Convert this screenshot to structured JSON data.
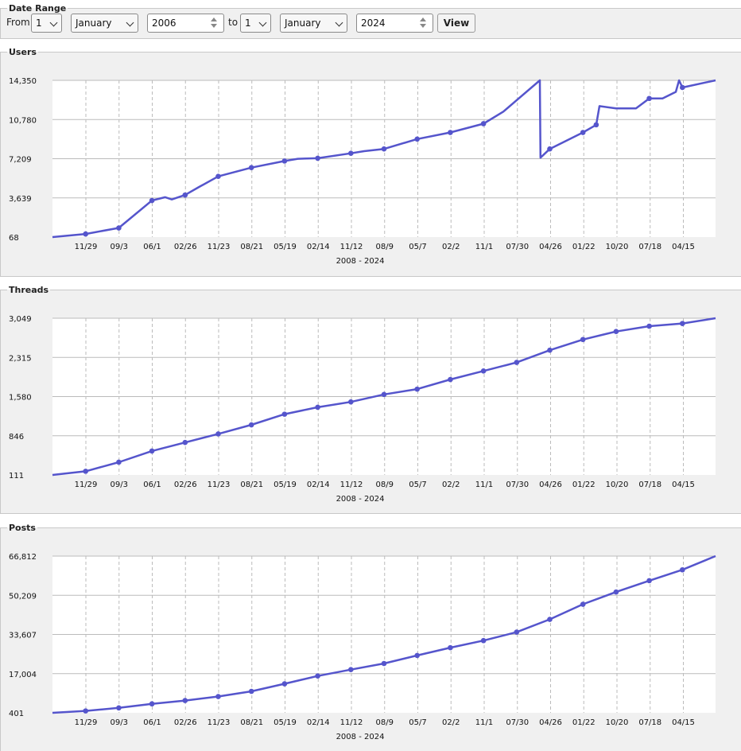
{
  "date_range": {
    "legend": "Date Range",
    "from_label": "From",
    "from_day": "1",
    "from_month": "January",
    "from_year": "2006",
    "to_label": "to",
    "to_day": "1",
    "to_month": "January",
    "to_year": "2024",
    "view_button": "View"
  },
  "colors": {
    "line": "#5555cc",
    "grid": "#bbbbbb",
    "panel": "#f0f0f0",
    "plot": "#ffffff"
  },
  "chart_data": [
    {
      "type": "line",
      "title": "Users",
      "xlabel": "2008 - 2024",
      "x_ticks": [
        "11/29",
        "09/3",
        "06/1",
        "02/26",
        "11/23",
        "08/21",
        "05/19",
        "02/14",
        "11/12",
        "08/9",
        "05/7",
        "02/2",
        "11/1",
        "07/30",
        "04/26",
        "01/22",
        "10/20",
        "07/18",
        "04/15"
      ],
      "y_ticks": [
        "68",
        "3,639",
        "7,209",
        "10,780",
        "14,350"
      ],
      "ylim": [
        68,
        14350
      ],
      "series": [
        {
          "x": [
            0,
            0.05,
            0.1,
            0.15,
            0.17,
            0.18,
            0.2,
            0.22,
            0.25,
            0.3,
            0.35,
            0.37,
            0.4,
            0.45,
            0.47,
            0.5,
            0.55,
            0.6,
            0.65,
            0.68,
            0.735,
            0.736,
            0.75,
            0.8,
            0.82,
            0.825,
            0.85,
            0.88,
            0.9,
            0.92,
            0.94,
            0.945,
            0.95,
            1.0
          ],
          "values": [
            68,
            350,
            900,
            3400,
            3700,
            3500,
            3900,
            4600,
            5600,
            6400,
            7000,
            7200,
            7250,
            7700,
            7900,
            8100,
            9000,
            9600,
            10400,
            11500,
            14350,
            7300,
            8100,
            9600,
            10300,
            12000,
            11800,
            11800,
            12700,
            12700,
            13300,
            14350,
            13700,
            14350
          ]
        }
      ],
      "markers": [
        0.05,
        0.1,
        0.15,
        0.2,
        0.25,
        0.3,
        0.35,
        0.4,
        0.45,
        0.5,
        0.55,
        0.6,
        0.65,
        0.75,
        0.8,
        0.82,
        0.9,
        0.95
      ]
    },
    {
      "type": "line",
      "title": "Threads",
      "xlabel": "2008 - 2024",
      "x_ticks": [
        "11/29",
        "09/3",
        "06/1",
        "02/26",
        "11/23",
        "08/21",
        "05/19",
        "02/14",
        "11/12",
        "08/9",
        "05/7",
        "02/2",
        "11/1",
        "07/30",
        "04/26",
        "01/22",
        "10/20",
        "07/18",
        "04/15"
      ],
      "y_ticks": [
        "111",
        "846",
        "1,580",
        "2,315",
        "3,049"
      ],
      "ylim": [
        111,
        3049
      ],
      "series": [
        {
          "x": [
            0,
            0.05,
            0.1,
            0.15,
            0.2,
            0.25,
            0.3,
            0.35,
            0.4,
            0.45,
            0.5,
            0.55,
            0.6,
            0.65,
            0.7,
            0.75,
            0.8,
            0.85,
            0.9,
            0.95,
            1.0
          ],
          "values": [
            111,
            180,
            350,
            560,
            720,
            880,
            1050,
            1250,
            1380,
            1480,
            1620,
            1720,
            1900,
            2060,
            2220,
            2450,
            2650,
            2800,
            2900,
            2950,
            3049
          ]
        }
      ],
      "markers": [
        0.05,
        0.1,
        0.15,
        0.2,
        0.25,
        0.3,
        0.35,
        0.4,
        0.45,
        0.5,
        0.55,
        0.6,
        0.65,
        0.7,
        0.75,
        0.8,
        0.85,
        0.9,
        0.95
      ]
    },
    {
      "type": "line",
      "title": "Posts",
      "xlabel": "2008 - 2024",
      "x_ticks": [
        "11/29",
        "09/3",
        "06/1",
        "02/26",
        "11/23",
        "08/21",
        "05/19",
        "02/14",
        "11/12",
        "08/9",
        "05/7",
        "02/2",
        "11/1",
        "07/30",
        "04/26",
        "01/22",
        "10/20",
        "07/18",
        "04/15"
      ],
      "y_ticks": [
        "401",
        "17,004",
        "33,607",
        "50,209",
        "66,812"
      ],
      "ylim": [
        401,
        66812
      ],
      "series": [
        {
          "x": [
            0,
            0.05,
            0.1,
            0.15,
            0.2,
            0.25,
            0.3,
            0.35,
            0.4,
            0.45,
            0.5,
            0.55,
            0.6,
            0.65,
            0.7,
            0.75,
            0.8,
            0.85,
            0.9,
            0.95,
            1.0
          ],
          "values": [
            401,
            1200,
            2500,
            4200,
            5600,
            7300,
            9500,
            12700,
            16000,
            18700,
            21300,
            24700,
            28000,
            31000,
            34600,
            40000,
            46400,
            51600,
            56400,
            61000,
            66812
          ]
        }
      ],
      "markers": [
        0.05,
        0.1,
        0.15,
        0.2,
        0.25,
        0.3,
        0.35,
        0.4,
        0.45,
        0.5,
        0.55,
        0.6,
        0.65,
        0.7,
        0.75,
        0.8,
        0.85,
        0.9,
        0.95
      ]
    }
  ]
}
